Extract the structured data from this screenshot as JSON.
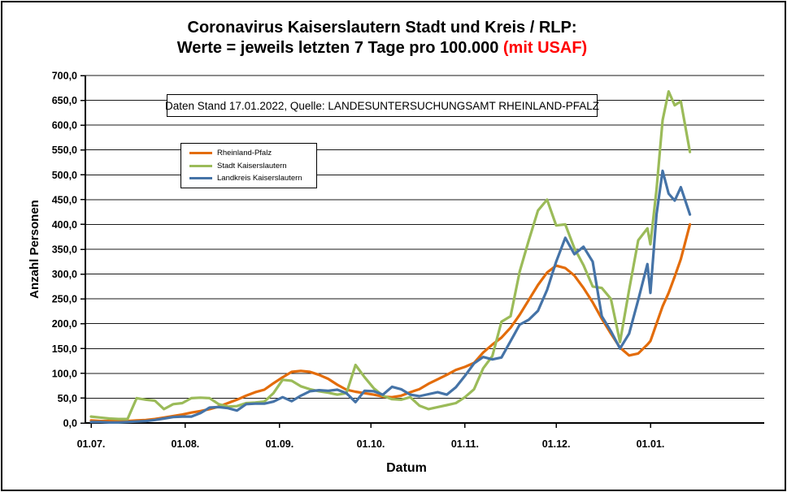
{
  "title": {
    "line1": "Coronavirus Kaiserslautern Stadt und Kreis / RLP:",
    "line2": "Werte = jeweils letzten 7 Tage pro 100.000",
    "line2_highlight": " (mit USAF)",
    "highlight_color": "#FF0000"
  },
  "annotation": {
    "text": "Daten Stand 17.01.2022, Quelle: LANDESUNTERSUCHUNGSAMT RHEINLAND-PFALZ"
  },
  "chart_data": {
    "type": "line",
    "title": "Coronavirus Kaiserslautern Stadt und Kreis / RLP: Werte = jeweils letzten 7 Tage pro 100.000 (mit USAF)",
    "xlabel": "Datum",
    "ylabel": "Anzahl Personen",
    "ylim": [
      0,
      700
    ],
    "y_step": 50,
    "grid": "horizontal",
    "legend_position": "upper-left-inside",
    "y_tick_labels": [
      "0,0",
      "50,0",
      "100,0",
      "150,0",
      "200,0",
      "250,0",
      "300,0",
      "350,0",
      "400,0",
      "450,0",
      "500,0",
      "550,0",
      "600,0",
      "650,0",
      "700,0"
    ],
    "x_ticks": [
      {
        "label": "01.07.",
        "day": 0
      },
      {
        "label": "01.08.",
        "day": 31
      },
      {
        "label": "01.09.",
        "day": 62
      },
      {
        "label": "01.10.",
        "day": 92
      },
      {
        "label": "01.11.",
        "day": 123
      },
      {
        "label": "01.12.",
        "day": 153
      },
      {
        "label": "01.01.",
        "day": 184
      }
    ],
    "x_days": [
      0,
      3,
      6,
      9,
      12,
      15,
      18,
      21,
      24,
      27,
      30,
      33,
      36,
      39,
      42,
      45,
      48,
      51,
      54,
      57,
      60,
      63,
      66,
      69,
      72,
      75,
      78,
      81,
      84,
      87,
      90,
      93,
      96,
      99,
      102,
      105,
      108,
      111,
      114,
      117,
      120,
      123,
      126,
      129,
      132,
      135,
      138,
      141,
      144,
      147,
      150,
      153,
      156,
      159,
      162,
      165,
      168,
      171,
      174,
      177,
      180,
      183,
      184,
      186,
      188,
      190,
      192,
      194,
      197
    ],
    "series": [
      {
        "name": "Rheinland-Pfalz",
        "color": "#E36C0A",
        "values": [
          5,
          4,
          4,
          4,
          4,
          5,
          6,
          8,
          11,
          14,
          17,
          21,
          24,
          28,
          33,
          40,
          47,
          55,
          62,
          67,
          80,
          92,
          103,
          105,
          103,
          97,
          89,
          77,
          67,
          63,
          60,
          57,
          53,
          52,
          55,
          62,
          68,
          79,
          88,
          97,
          107,
          113,
          121,
          142,
          158,
          172,
          192,
          218,
          248,
          278,
          303,
          317,
          312,
          297,
          272,
          243,
          210,
          180,
          152,
          136,
          140,
          158,
          165,
          200,
          235,
          262,
          295,
          330,
          400
        ]
      },
      {
        "name": "Stadt Kaiserslautern",
        "color": "#9BBB59",
        "values": [
          13,
          11,
          9,
          8,
          8,
          50,
          47,
          45,
          28,
          38,
          40,
          50,
          51,
          50,
          38,
          33,
          34,
          40,
          41,
          43,
          60,
          87,
          85,
          74,
          68,
          64,
          61,
          57,
          60,
          117,
          92,
          70,
          55,
          48,
          47,
          52,
          35,
          28,
          32,
          36,
          40,
          52,
          68,
          110,
          135,
          204,
          215,
          305,
          368,
          428,
          450,
          398,
          400,
          352,
          318,
          275,
          272,
          250,
          163,
          268,
          368,
          392,
          360,
          470,
          610,
          668,
          640,
          648,
          546
        ]
      },
      {
        "name": "Landkreis Kaiserslautern",
        "color": "#4573A7",
        "values": [
          2,
          2,
          1,
          1,
          2,
          3,
          4,
          6,
          9,
          12,
          13,
          13,
          20,
          31,
          32,
          30,
          25,
          38,
          39,
          39,
          43,
          52,
          44,
          55,
          64,
          66,
          65,
          67,
          60,
          42,
          65,
          64,
          57,
          73,
          68,
          57,
          54,
          58,
          62,
          57,
          72,
          95,
          120,
          133,
          128,
          132,
          165,
          198,
          208,
          226,
          268,
          325,
          373,
          340,
          355,
          325,
          215,
          185,
          150,
          180,
          248,
          320,
          262,
          420,
          508,
          462,
          448,
          475,
          420
        ]
      }
    ]
  }
}
